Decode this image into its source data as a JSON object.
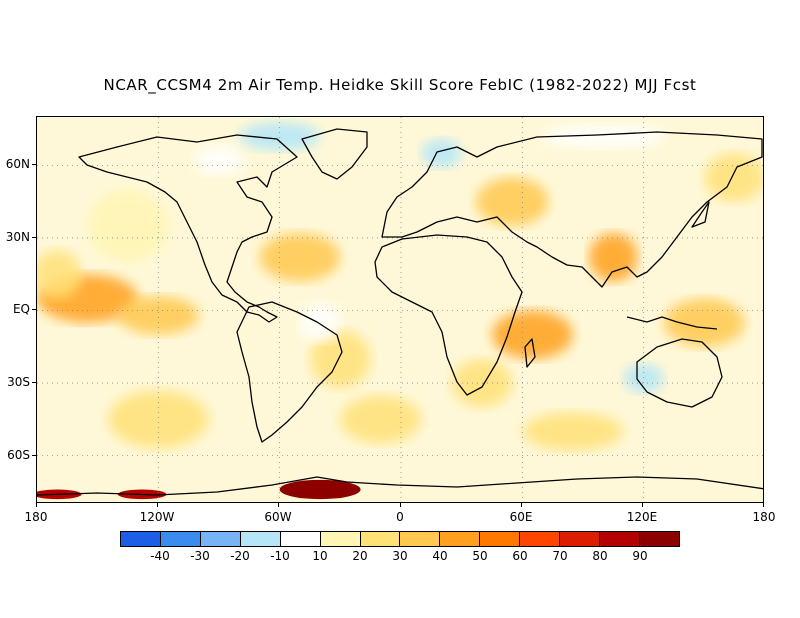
{
  "title": "NCAR_CCSM4 2m Air Temp. Heidke Skill Score FebIC (1982-2022) MJJ Fcst",
  "map": {
    "projection": "equirectangular",
    "lon_range": [
      -180,
      180
    ],
    "lat_range": [
      -80,
      80
    ],
    "ocean_color": "#ffffff",
    "coastline_color": "#000000",
    "gridlines": "dotted"
  },
  "y_axis_labels": [
    {
      "text": "60N",
      "lat": 60
    },
    {
      "text": "30N",
      "lat": 30
    },
    {
      "text": "EQ",
      "lat": 0
    },
    {
      "text": "30S",
      "lat": -30
    },
    {
      "text": "60S",
      "lat": -60
    }
  ],
  "x_axis_labels": [
    {
      "text": "180",
      "lon": -180
    },
    {
      "text": "120W",
      "lon": -120
    },
    {
      "text": "60W",
      "lon": -60
    },
    {
      "text": "0",
      "lon": 0
    },
    {
      "text": "60E",
      "lon": 60
    },
    {
      "text": "120E",
      "lon": 120
    },
    {
      "text": "180",
      "lon": 180
    }
  ],
  "colorbar": {
    "colors": [
      "#1e5ee6",
      "#3c8cf0",
      "#78b4f5",
      "#b4e6f8",
      "#ffffff",
      "#fff5b4",
      "#ffe178",
      "#ffc850",
      "#ffa01e",
      "#ff7800",
      "#ff4600",
      "#dc1e00",
      "#b40000",
      "#8c0000"
    ],
    "labels": [
      "-40",
      "-30",
      "-20",
      "-10",
      "10",
      "20",
      "30",
      "40",
      "50",
      "60",
      "70",
      "80",
      "90"
    ]
  },
  "skill_regions": [
    {
      "lon": -155,
      "lat": 5,
      "rx": 25,
      "ry": 10,
      "value": 40
    },
    {
      "lon": -120,
      "lat": -2,
      "rx": 20,
      "ry": 8,
      "value": 30
    },
    {
      "lon": -170,
      "lat": 15,
      "rx": 12,
      "ry": 10,
      "value": 20
    },
    {
      "lon": -135,
      "lat": 35,
      "rx": 20,
      "ry": 15,
      "value": 10
    },
    {
      "lon": -50,
      "lat": 22,
      "rx": 20,
      "ry": 10,
      "value": 30
    },
    {
      "lon": -30,
      "lat": -20,
      "rx": 15,
      "ry": 12,
      "value": 20
    },
    {
      "lon": -10,
      "lat": -45,
      "rx": 20,
      "ry": 10,
      "value": 20
    },
    {
      "lon": 65,
      "lat": -10,
      "rx": 20,
      "ry": 10,
      "value": 40
    },
    {
      "lon": 55,
      "lat": 45,
      "rx": 18,
      "ry": 10,
      "value": 30
    },
    {
      "lon": 105,
      "lat": 22,
      "rx": 12,
      "ry": 10,
      "value": 40
    },
    {
      "lon": 150,
      "lat": -5,
      "rx": 20,
      "ry": 10,
      "value": 30
    },
    {
      "lon": 85,
      "lat": -50,
      "rx": 25,
      "ry": 8,
      "value": 20
    },
    {
      "lon": -120,
      "lat": -45,
      "rx": 25,
      "ry": 12,
      "value": 20
    },
    {
      "lon": 40,
      "lat": -30,
      "rx": 15,
      "ry": 10,
      "value": 20
    },
    {
      "lon": 165,
      "lat": 55,
      "rx": 15,
      "ry": 10,
      "value": 20
    },
    {
      "lon": 120,
      "lat": -28,
      "rx": 10,
      "ry": 6,
      "value": -20
    },
    {
      "lon": -60,
      "lat": 72,
      "rx": 20,
      "ry": 6,
      "value": -20
    },
    {
      "lon": -90,
      "lat": 62,
      "rx": 12,
      "ry": 6,
      "value": -10
    },
    {
      "lon": 20,
      "lat": 65,
      "rx": 10,
      "ry": 6,
      "value": -20
    },
    {
      "lon": 100,
      "lat": 72,
      "rx": 30,
      "ry": 5,
      "value": -10
    },
    {
      "lon": -40,
      "lat": -5,
      "rx": 10,
      "ry": 8,
      "value": -10
    },
    {
      "lon": -170,
      "lat": -76,
      "rx": 12,
      "ry": 2,
      "value": 80
    },
    {
      "lon": -128,
      "lat": -76,
      "rx": 12,
      "ry": 2,
      "value": 80
    },
    {
      "lon": -40,
      "lat": -74,
      "rx": 20,
      "ry": 4,
      "value": 90
    }
  ]
}
